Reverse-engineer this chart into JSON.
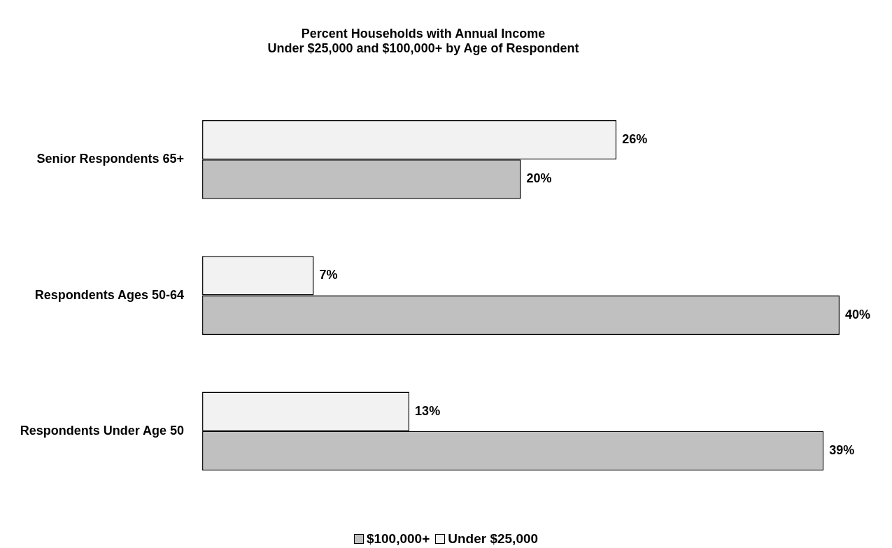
{
  "chart_data": {
    "type": "bar",
    "orientation": "horizontal",
    "title": "Percent Households with Annual Income\nUnder $25,000 and $100,000+ by Age of Respondent",
    "categories": [
      "Senior Respondents 65+",
      "Respondents Ages 50-64",
      "Respondents Under Age 50"
    ],
    "series": [
      {
        "name": "$100,000+",
        "color": "#c0c0c0",
        "values": [
          20,
          40,
          39
        ],
        "value_labels": [
          "20%",
          "40%",
          "39%"
        ]
      },
      {
        "name": "Under $25,000",
        "color": "#f2f2f2",
        "values": [
          26,
          7,
          13
        ],
        "value_labels": [
          "26%",
          "7%",
          "13%"
        ]
      }
    ],
    "xlim": [
      0,
      40
    ],
    "tick_labels": "y",
    "legend": "bottom"
  }
}
